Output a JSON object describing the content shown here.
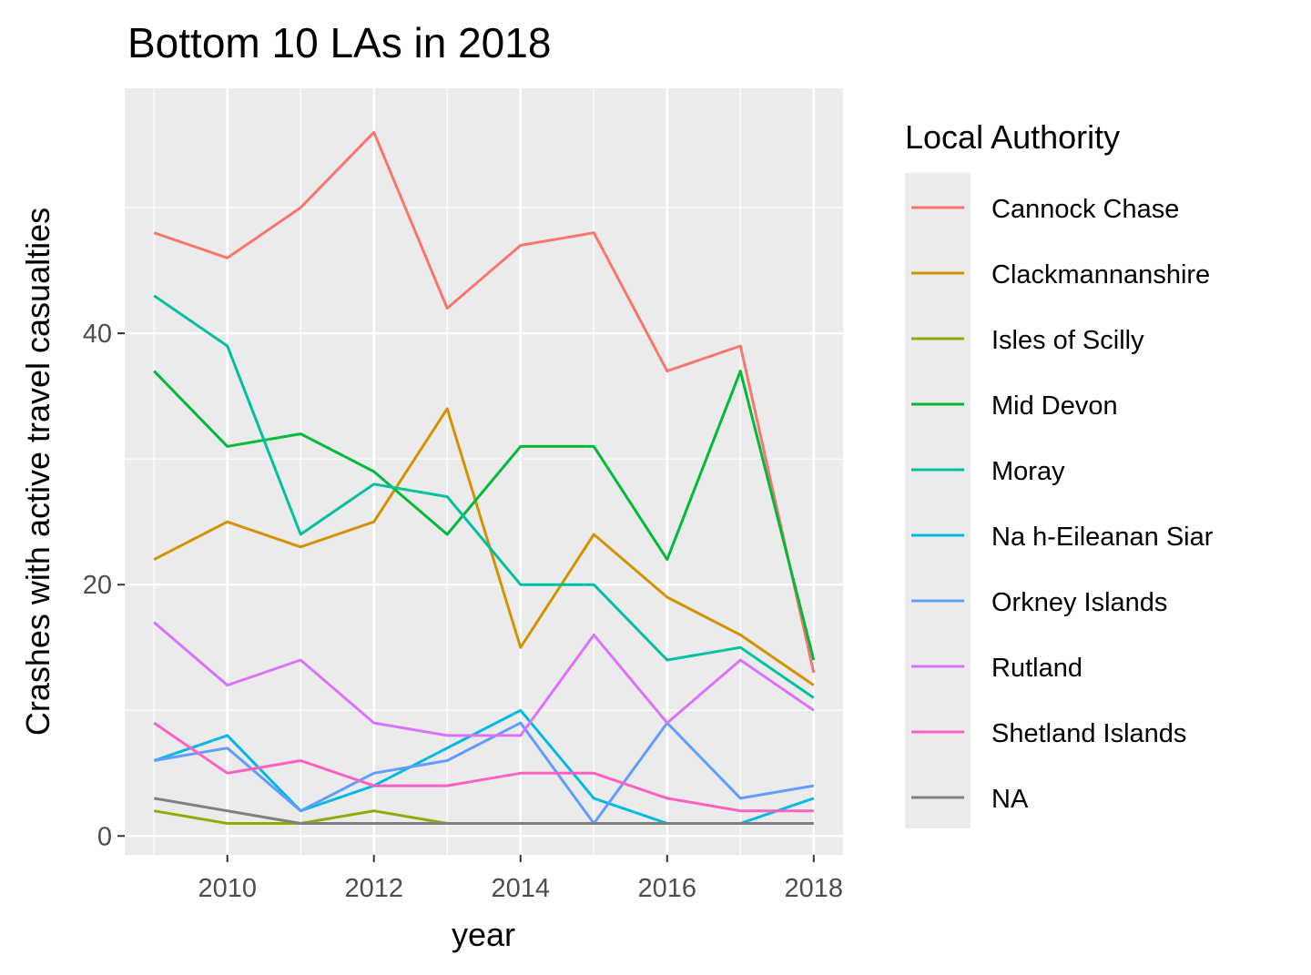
{
  "chart_data": {
    "type": "line",
    "title": "Bottom 10 LAs in 2018",
    "xlabel": "year",
    "ylabel": "Crashes with active travel casualties",
    "x": [
      2009,
      2010,
      2011,
      2012,
      2013,
      2014,
      2015,
      2016,
      2017,
      2018
    ],
    "xlim": [
      2008.6,
      2018.4
    ],
    "ylim": [
      -1.5,
      59.5
    ],
    "xticks": [
      "2010",
      "2012",
      "2014",
      "2016",
      "2018"
    ],
    "yticks": [
      "0",
      "20",
      "40"
    ],
    "grid": true,
    "legend": {
      "title": "Local Authority",
      "position": "right"
    },
    "series": [
      {
        "name": "Cannock Chase",
        "color": "#F8766D",
        "values": [
          48,
          46,
          50,
          56,
          42,
          47,
          48,
          37,
          39,
          13
        ]
      },
      {
        "name": "Clackmannanshire",
        "color": "#D39200",
        "values": [
          22,
          25,
          23,
          25,
          34,
          15,
          24,
          19,
          16,
          12
        ]
      },
      {
        "name": "Isles of Scilly",
        "color": "#93AA00",
        "values": [
          2,
          1,
          1,
          2,
          1,
          null,
          null,
          null,
          null,
          null
        ]
      },
      {
        "name": "Mid Devon",
        "color": "#00BA38",
        "values": [
          37,
          31,
          32,
          29,
          24,
          31,
          31,
          22,
          37,
          14
        ]
      },
      {
        "name": "Moray",
        "color": "#00C19F",
        "values": [
          43,
          39,
          24,
          28,
          27,
          20,
          20,
          14,
          15,
          11
        ]
      },
      {
        "name": "Na h-Eileanan Siar",
        "color": "#00B9E3",
        "values": [
          6,
          8,
          2,
          4,
          7,
          10,
          3,
          1,
          1,
          3
        ]
      },
      {
        "name": "Orkney Islands",
        "color": "#619CFF",
        "values": [
          6,
          7,
          2,
          5,
          6,
          9,
          1,
          9,
          3,
          4
        ]
      },
      {
        "name": "Rutland",
        "color": "#DB72FB",
        "values": [
          17,
          12,
          14,
          9,
          8,
          8,
          16,
          9,
          14,
          10
        ]
      },
      {
        "name": "Shetland Islands",
        "color": "#FF61C3",
        "values": [
          9,
          5,
          6,
          4,
          4,
          5,
          5,
          3,
          2,
          2
        ]
      },
      {
        "name": "NA",
        "color": "#808080",
        "values": [
          3,
          2,
          1,
          1,
          1,
          1,
          1,
          1,
          1,
          1
        ]
      }
    ]
  }
}
